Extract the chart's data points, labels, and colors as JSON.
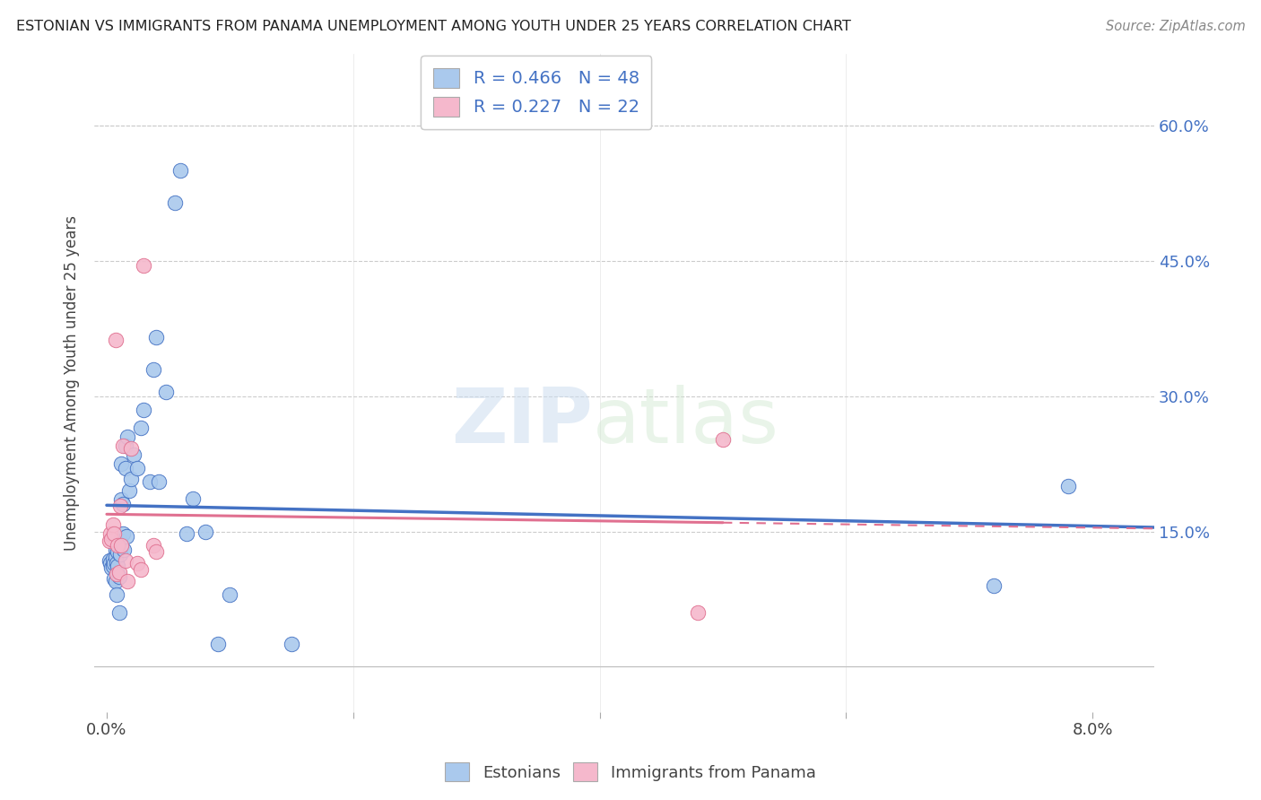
{
  "title": "ESTONIAN VS IMMIGRANTS FROM PANAMA UNEMPLOYMENT AMONG YOUTH UNDER 25 YEARS CORRELATION CHART",
  "source": "Source: ZipAtlas.com",
  "ylabel": "Unemployment Among Youth under 25 years",
  "ylabel_ticks_right": [
    "60.0%",
    "45.0%",
    "30.0%",
    "15.0%"
  ],
  "ylabel_vals_right": [
    0.6,
    0.45,
    0.3,
    0.15
  ],
  "xlabel_ticks": [
    "0.0%",
    "",
    "",
    "",
    "8.0%"
  ],
  "xlabel_tick_positions": [
    0.0,
    0.02,
    0.04,
    0.06,
    0.08
  ],
  "minor_xticks": [
    0.02,
    0.04,
    0.06
  ],
  "ylim": [
    -0.05,
    0.68
  ],
  "xlim": [
    -0.001,
    0.085
  ],
  "legend_label1": "Estonians",
  "legend_label2": "Immigrants from Panama",
  "R1": 0.466,
  "N1": 48,
  "R2": 0.227,
  "N2": 22,
  "color_blue": "#aac9ed",
  "color_pink": "#f5b8cc",
  "line_color_blue": "#4472c4",
  "line_color_pink": "#e07090",
  "blue_x": [
    0.0002,
    0.0003,
    0.0004,
    0.0005,
    0.0005,
    0.0006,
    0.0006,
    0.0007,
    0.0007,
    0.0007,
    0.0008,
    0.0008,
    0.0009,
    0.0009,
    0.001,
    0.001,
    0.0011,
    0.0011,
    0.0012,
    0.0012,
    0.0013,
    0.0013,
    0.0014,
    0.0015,
    0.0015,
    0.0016,
    0.0017,
    0.0018,
    0.002,
    0.0022,
    0.0025,
    0.0028,
    0.003,
    0.0035,
    0.0038,
    0.004,
    0.0042,
    0.0048,
    0.0055,
    0.006,
    0.0065,
    0.007,
    0.008,
    0.009,
    0.01,
    0.015,
    0.072,
    0.078
  ],
  "blue_y": [
    0.118,
    0.115,
    0.11,
    0.112,
    0.12,
    0.115,
    0.098,
    0.13,
    0.122,
    0.095,
    0.115,
    0.08,
    0.128,
    0.112,
    0.1,
    0.06,
    0.14,
    0.125,
    0.225,
    0.185,
    0.148,
    0.18,
    0.13,
    0.22,
    0.245,
    0.145,
    0.255,
    0.195,
    0.208,
    0.235,
    0.22,
    0.265,
    0.285,
    0.205,
    0.33,
    0.365,
    0.205,
    0.305,
    0.515,
    0.55,
    0.148,
    0.186,
    0.15,
    0.025,
    0.08,
    0.025,
    0.09,
    0.2
  ],
  "pink_x": [
    0.0002,
    0.0003,
    0.0004,
    0.0005,
    0.0006,
    0.0007,
    0.0008,
    0.0009,
    0.001,
    0.0011,
    0.0012,
    0.0013,
    0.0015,
    0.0017,
    0.002,
    0.0025,
    0.0028,
    0.003,
    0.0038,
    0.004,
    0.048,
    0.05
  ],
  "pink_y": [
    0.14,
    0.148,
    0.142,
    0.158,
    0.148,
    0.362,
    0.103,
    0.135,
    0.105,
    0.178,
    0.135,
    0.245,
    0.118,
    0.095,
    0.242,
    0.115,
    0.108,
    0.445,
    0.135,
    0.128,
    0.06,
    0.252
  ],
  "watermark_zip": "ZIP",
  "watermark_atlas": "atlas",
  "background_color": "#ffffff",
  "grid_color": "#cccccc"
}
